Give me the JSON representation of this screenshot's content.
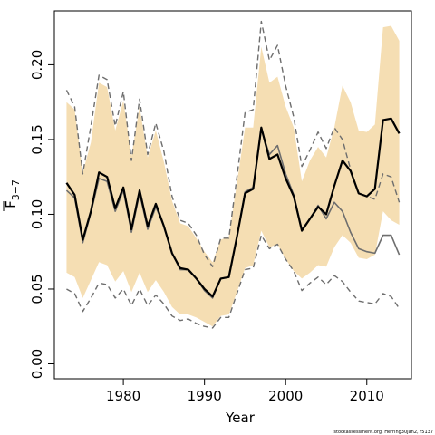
{
  "chart_data": {
    "type": "line",
    "title": "",
    "xlabel": "Year",
    "ylabel": "F3-7",
    "ylabel_parts": {
      "symbol": "F",
      "subscript": "3−7"
    },
    "footnote": "stockassessment.org, Herring30Jan2, r5137",
    "xlim": [
      1971.5,
      2015.5
    ],
    "ylim": [
      -0.01,
      0.236
    ],
    "xticks": [
      1980,
      1990,
      2000,
      2010
    ],
    "yticks": [
      0.0,
      0.05,
      0.1,
      0.15,
      0.2
    ],
    "xtick_labels": [
      "1980",
      "1990",
      "2000",
      "2010"
    ],
    "ytick_labels": [
      "0.00",
      "0.05",
      "0.10",
      "0.15",
      "0.20"
    ],
    "grid": false,
    "colors": {
      "band": "#f5deb3",
      "estimate": "#000000",
      "previous": "#6e6e6e",
      "previous_ci": "#6e6e6e"
    },
    "x": [
      1973,
      1974,
      1975,
      1976,
      1977,
      1978,
      1979,
      1980,
      1981,
      1982,
      1983,
      1984,
      1985,
      1986,
      1987,
      1988,
      1989,
      1990,
      1991,
      1992,
      1993,
      1994,
      1995,
      1996,
      1997,
      1998,
      1999,
      2000,
      2001,
      2002,
      2003,
      2004,
      2005,
      2006,
      2007,
      2008,
      2009,
      2010,
      2011,
      2012,
      2013,
      2014
    ],
    "series": [
      {
        "role": "estimate",
        "values": [
          0.121,
          0.113,
          0.083,
          0.102,
          0.128,
          0.125,
          0.104,
          0.118,
          0.09,
          0.116,
          0.092,
          0.107,
          0.092,
          0.074,
          0.064,
          0.063,
          0.057,
          0.05,
          0.045,
          0.057,
          0.058,
          0.085,
          0.114,
          0.117,
          0.158,
          0.137,
          0.14,
          0.124,
          0.112,
          0.089,
          0.097,
          0.105,
          0.1,
          0.119,
          0.136,
          0.129,
          0.114,
          0.112,
          0.117,
          0.163,
          0.164,
          0.154
        ]
      },
      {
        "role": "ci_lower",
        "values": [
          0.061,
          0.058,
          0.044,
          0.056,
          0.068,
          0.066,
          0.055,
          0.062,
          0.048,
          0.061,
          0.048,
          0.056,
          0.048,
          0.038,
          0.033,
          0.033,
          0.031,
          0.028,
          0.025,
          0.032,
          0.033,
          0.048,
          0.064,
          0.066,
          0.089,
          0.078,
          0.08,
          0.07,
          0.062,
          0.057,
          0.061,
          0.066,
          0.065,
          0.078,
          0.086,
          0.081,
          0.071,
          0.07,
          0.073,
          0.102,
          0.096,
          0.093
        ]
      },
      {
        "role": "ci_upper",
        "values": [
          0.175,
          0.17,
          0.128,
          0.148,
          0.188,
          0.185,
          0.156,
          0.176,
          0.139,
          0.172,
          0.138,
          0.156,
          0.135,
          0.109,
          0.094,
          0.092,
          0.084,
          0.075,
          0.068,
          0.083,
          0.085,
          0.121,
          0.158,
          0.158,
          0.212,
          0.188,
          0.192,
          0.172,
          0.158,
          0.122,
          0.136,
          0.145,
          0.138,
          0.158,
          0.186,
          0.175,
          0.156,
          0.155,
          0.16,
          0.225,
          0.226,
          0.216
        ]
      },
      {
        "role": "previous",
        "values": [
          0.116,
          0.111,
          0.081,
          0.101,
          0.124,
          0.122,
          0.102,
          0.116,
          0.088,
          0.114,
          0.09,
          0.105,
          0.092,
          0.074,
          0.063,
          0.063,
          0.057,
          0.049,
          0.044,
          0.057,
          0.058,
          0.085,
          0.115,
          0.118,
          0.157,
          0.14,
          0.146,
          0.127,
          0.113,
          0.09,
          0.097,
          0.106,
          0.097,
          0.108,
          0.102,
          0.088,
          0.077,
          0.075,
          0.074,
          0.086,
          0.086,
          0.073
        ]
      },
      {
        "role": "previous_ci_lower",
        "values": [
          0.05,
          0.047,
          0.035,
          0.044,
          0.054,
          0.053,
          0.044,
          0.05,
          0.039,
          0.05,
          0.039,
          0.046,
          0.04,
          0.032,
          0.029,
          0.03,
          0.027,
          0.025,
          0.024,
          0.031,
          0.031,
          0.047,
          0.063,
          0.064,
          0.086,
          0.077,
          0.08,
          0.07,
          0.062,
          0.049,
          0.054,
          0.058,
          0.053,
          0.059,
          0.055,
          0.048,
          0.042,
          0.041,
          0.04,
          0.047,
          0.045,
          0.037
        ]
      },
      {
        "role": "previous_ci_upper",
        "values": [
          0.183,
          0.172,
          0.127,
          0.159,
          0.193,
          0.19,
          0.159,
          0.182,
          0.136,
          0.177,
          0.14,
          0.161,
          0.142,
          0.112,
          0.096,
          0.094,
          0.086,
          0.073,
          0.065,
          0.084,
          0.084,
          0.125,
          0.168,
          0.17,
          0.229,
          0.203,
          0.213,
          0.186,
          0.165,
          0.132,
          0.143,
          0.155,
          0.144,
          0.158,
          0.15,
          0.13,
          0.114,
          0.112,
          0.11,
          0.127,
          0.125,
          0.108
        ]
      }
    ]
  }
}
